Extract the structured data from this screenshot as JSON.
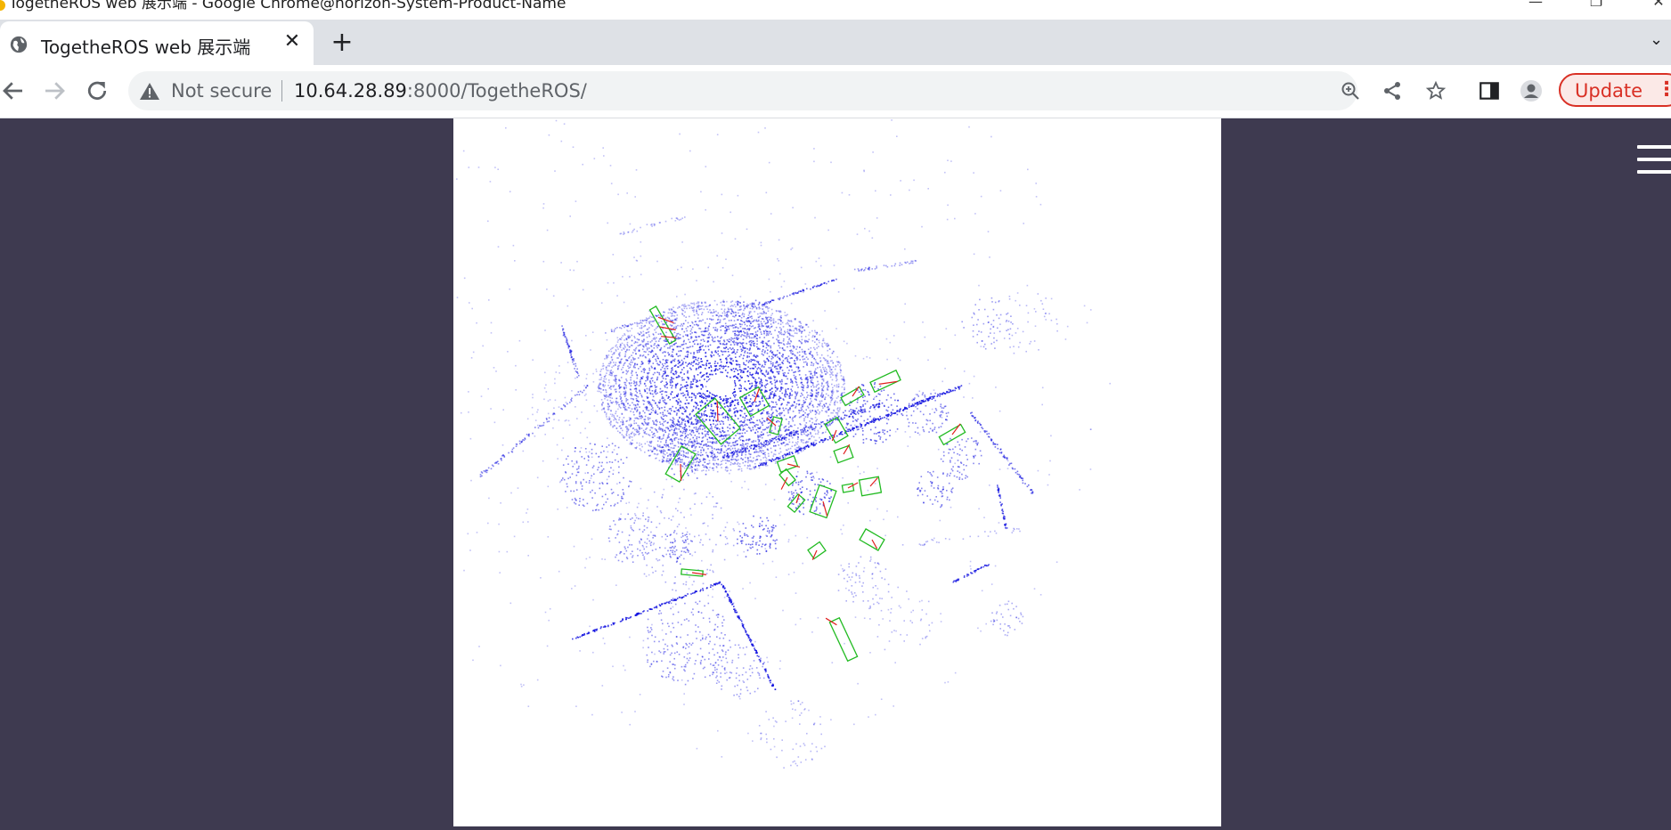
{
  "window": {
    "title": "TogetheROS web 展示端 - Google Chrome@horizon-System-Product-Name",
    "controls": {
      "minimize": "—",
      "restore": "❐",
      "close": "✕"
    }
  },
  "tabs": [
    {
      "label": "TogetheROS web 展示端",
      "icon": "globe-icon",
      "close": "✕"
    }
  ],
  "tabstrip": {
    "new_tab": "+",
    "tab_search": "⌄"
  },
  "toolbar": {
    "security_label": "Not secure",
    "url_host": "10.64.28.89",
    "url_rest": ":8000/TogetheROS/",
    "update_label": "Update",
    "menu_label": "⋮"
  },
  "colors": {
    "page_background": "#3e3a50",
    "point_cloud": "#1010e0",
    "box_green": "#22bb22",
    "box_red": "#e02020",
    "update_accent": "#d93025"
  }
}
